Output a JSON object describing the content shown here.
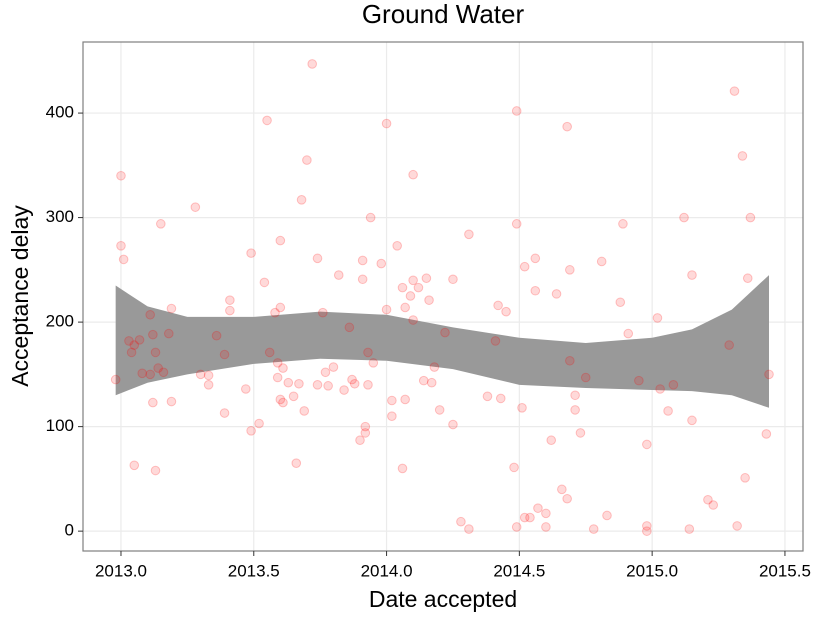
{
  "chart_data": {
    "type": "scatter",
    "title": "Ground Water",
    "x_label": "Date accepted",
    "y_label": "Acceptance delay",
    "color": "#ff0000",
    "grid": true,
    "xlim": [
      2012.857,
      2015.568
    ],
    "ylim": [
      -19,
      468
    ],
    "xticks": [
      {
        "value": 2013,
        "label": "2013.0"
      },
      {
        "value": 2013.5,
        "label": "2013.5"
      },
      {
        "value": 2014,
        "label": "2014.0"
      },
      {
        "value": 2014.5,
        "label": "2014.5"
      },
      {
        "value": 2015,
        "label": "2015.0"
      },
      {
        "value": 2015.5,
        "label": "2015.5"
      }
    ],
    "yticks": [
      0,
      100,
      200,
      300,
      400
    ],
    "x": [
      2012.98,
      2013.0,
      2013.0,
      2013.01,
      2013.03,
      2013.04,
      2013.05,
      2013.05,
      2013.07,
      2013.08,
      2013.11,
      2013.11,
      2013.12,
      2013.12,
      2013.13,
      2013.13,
      2013.14,
      2013.15,
      2013.16,
      2013.18,
      2013.19,
      2013.19,
      2013.28,
      2013.3,
      2013.33,
      2013.33,
      2013.36,
      2013.39,
      2013.41,
      2013.41,
      2013.39,
      2013.47,
      2013.49,
      2013.49,
      2013.52,
      2013.55,
      2013.54,
      2013.56,
      2013.58,
      2013.59,
      2013.59,
      2013.6,
      2013.6,
      2013.6,
      2013.61,
      2013.61,
      2013.63,
      2013.65,
      2013.66,
      2013.68,
      2013.67,
      2013.69,
      2013.7,
      2013.72,
      2013.74,
      2013.74,
      2013.76,
      2013.77,
      2013.78,
      2013.8,
      2013.82,
      2013.84,
      2013.86,
      2013.87,
      2013.88,
      2013.9,
      2013.91,
      2013.91,
      2013.92,
      2013.92,
      2013.93,
      2013.94,
      2013.95,
      2013.93,
      2013.98,
      2014.0,
      2014.0,
      2014.02,
      2014.02,
      2014.04,
      2014.06,
      2014.06,
      2014.07,
      2014.07,
      2014.09,
      2014.1,
      2014.1,
      2014.1,
      2014.12,
      2014.14,
      2014.15,
      2014.16,
      2014.17,
      2014.18,
      2014.2,
      2014.22,
      2014.25,
      2014.25,
      2014.28,
      2014.31,
      2014.31,
      2014.38,
      2014.41,
      2014.42,
      2014.43,
      2014.45,
      2014.48,
      2014.49,
      2014.49,
      2014.49,
      2014.51,
      2014.52,
      2014.52,
      2014.54,
      2014.56,
      2014.56,
      2014.57,
      2014.6,
      2014.6,
      2014.62,
      2014.64,
      2014.66,
      2014.68,
      2014.68,
      2014.69,
      2014.69,
      2014.71,
      2014.71,
      2014.73,
      2014.75,
      2014.78,
      2014.81,
      2014.83,
      2014.89,
      2014.88,
      2014.91,
      2014.95,
      2014.98,
      2014.98,
      2014.98,
      2015.02,
      2015.03,
      2015.06,
      2015.08,
      2015.12,
      2015.14,
      2015.15,
      2015.15,
      2015.21,
      2015.23,
      2015.29,
      2015.31,
      2015.32,
      2015.34,
      2015.35,
      2015.36,
      2015.37,
      2015.43,
      2015.44
    ],
    "values": [
      145,
      340,
      273,
      260,
      182,
      171,
      63,
      178,
      183,
      151,
      207,
      150,
      188,
      123,
      58,
      171,
      156,
      294,
      152,
      189,
      213,
      124,
      310,
      150,
      149,
      140,
      187,
      113,
      221,
      211,
      169,
      136,
      266,
      96,
      103,
      393,
      238,
      171,
      209,
      147,
      161,
      214,
      126,
      278,
      156,
      123,
      142,
      129,
      65,
      317,
      141,
      115,
      355,
      447,
      140,
      261,
      209,
      152,
      139,
      157,
      245,
      135,
      195,
      145,
      141,
      87,
      259,
      241,
      100,
      94,
      171,
      300,
      161,
      140,
      256,
      390,
      212,
      125,
      110,
      273,
      233,
      60,
      126,
      214,
      225,
      341,
      240,
      202,
      233,
      144,
      242,
      221,
      142,
      157,
      116,
      190,
      102,
      241,
      9,
      284,
      2,
      129,
      182,
      216,
      127,
      210,
      61,
      402,
      294,
      4,
      118,
      253,
      13,
      13,
      261,
      230,
      22,
      17,
      4,
      87,
      227,
      40,
      31,
      387,
      163,
      250,
      116,
      130,
      94,
      147,
      2,
      258,
      15,
      294,
      219,
      189,
      144,
      83,
      5,
      0,
      204,
      136,
      115,
      140,
      300,
      2,
      245,
      106,
      30,
      25,
      178,
      421,
      5,
      359,
      51,
      242,
      300,
      93,
      150
    ],
    "band": {
      "color": "#999999",
      "x": [
        2012.98,
        2013.1,
        2013.25,
        2013.5,
        2013.75,
        2014.0,
        2014.25,
        2014.5,
        2014.75,
        2015.0,
        2015.15,
        2015.3,
        2015.44
      ],
      "upper": [
        235,
        215,
        205,
        205,
        210,
        207,
        195,
        185,
        180,
        185,
        193,
        212,
        245
      ],
      "lower": [
        130,
        142,
        150,
        160,
        165,
        163,
        155,
        140,
        137,
        135,
        134,
        130,
        118
      ]
    }
  }
}
